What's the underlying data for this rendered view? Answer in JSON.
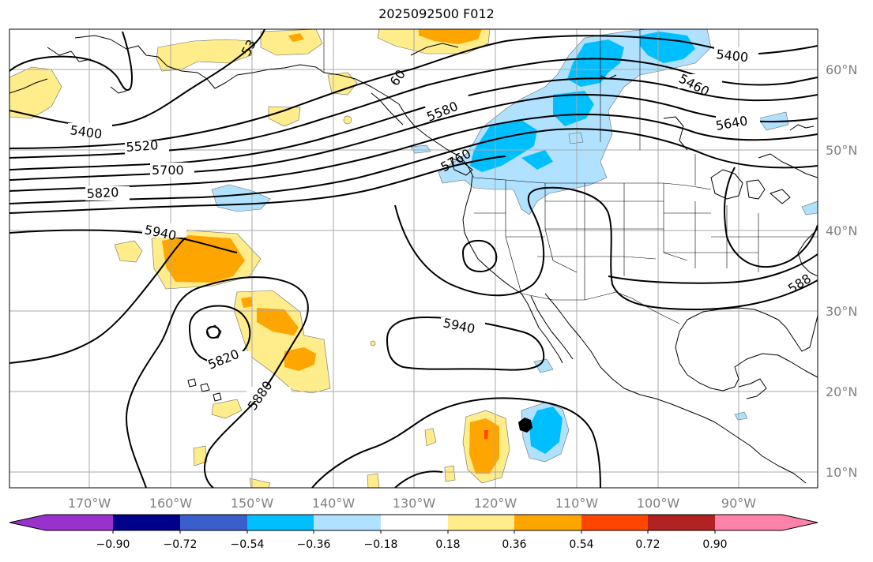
{
  "title": "2025092500 F012",
  "map": {
    "lon_labels": [
      "170°W",
      "160°W",
      "150°W",
      "140°W",
      "130°W",
      "120°W",
      "110°W",
      "100°W",
      "90°W"
    ],
    "lat_labels": [
      "60°N",
      "50°N",
      "40°N",
      "30°N",
      "20°N",
      "10°N"
    ],
    "contour_labels": [
      "5400",
      "5520",
      "5700",
      "5820",
      "5940",
      "5580",
      "5640",
      "5460",
      "5400",
      "5940",
      "5820",
      "5880",
      "53",
      "60",
      "5760",
      "588"
    ]
  },
  "colorbar": {
    "ticks": [
      "−0.90",
      "−0.72",
      "−0.54",
      "−0.36",
      "−0.18",
      "0.18",
      "0.36",
      "0.54",
      "0.72",
      "0.90"
    ],
    "colors": [
      "#9932cc",
      "#00008b",
      "#3a5fcd",
      "#00bfff",
      "#b0e2ff",
      "#ffffff",
      "#ffec8b",
      "#ffa500",
      "#ff4500",
      "#b22222",
      "#ff82ab"
    ]
  }
}
